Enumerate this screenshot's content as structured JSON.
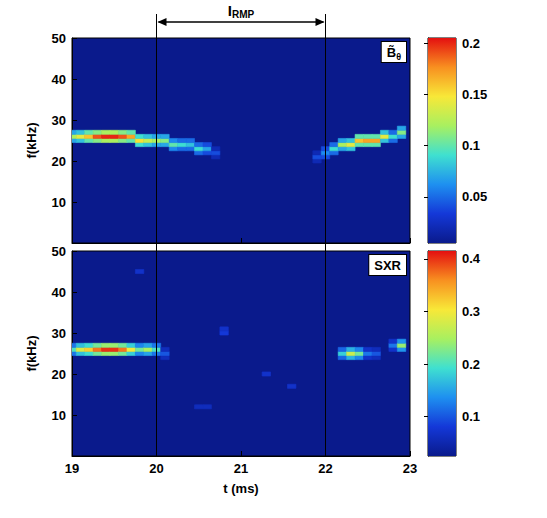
{
  "chart_data": [
    {
      "type": "heatmap",
      "title": {
        "text": "B̃",
        "subscript": "θ"
      },
      "ylabel": "f(kHz)",
      "xlim": [
        19,
        23
      ],
      "xticks": [
        19,
        20,
        21,
        22,
        23
      ],
      "ylim": [
        0,
        50
      ],
      "yticks": [
        10,
        20,
        30,
        40,
        50
      ],
      "tick_labels": "y",
      "grid": false,
      "annotations": [
        {
          "text": "I",
          "subscript": "RMP",
          "x": [
            20,
            22
          ]
        }
      ],
      "colorbar": {
        "range": [
          0.005,
          0.205
        ],
        "ticks": [
          0.05,
          0.1,
          0.15,
          0.2
        ]
      },
      "cells": [
        [
          19.0,
          25,
          0.07
        ],
        [
          19.0,
          26,
          0.12
        ],
        [
          19.0,
          27,
          0.07
        ],
        [
          19.1,
          25,
          0.08
        ],
        [
          19.1,
          26,
          0.14
        ],
        [
          19.1,
          27,
          0.08
        ],
        [
          19.2,
          25,
          0.1
        ],
        [
          19.2,
          26,
          0.16
        ],
        [
          19.2,
          27,
          0.1
        ],
        [
          19.3,
          25,
          0.11
        ],
        [
          19.3,
          26,
          0.19
        ],
        [
          19.3,
          27,
          0.11
        ],
        [
          19.4,
          25,
          0.12
        ],
        [
          19.4,
          26,
          0.2
        ],
        [
          19.4,
          27,
          0.12
        ],
        [
          19.5,
          25,
          0.12
        ],
        [
          19.5,
          26,
          0.2
        ],
        [
          19.5,
          27,
          0.12
        ],
        [
          19.6,
          25,
          0.11
        ],
        [
          19.6,
          26,
          0.19
        ],
        [
          19.6,
          27,
          0.11
        ],
        [
          19.7,
          25,
          0.1
        ],
        [
          19.7,
          26,
          0.17
        ],
        [
          19.7,
          27,
          0.1
        ],
        [
          19.8,
          24,
          0.09
        ],
        [
          19.8,
          25,
          0.15
        ],
        [
          19.8,
          26,
          0.09
        ],
        [
          19.9,
          24,
          0.08
        ],
        [
          19.9,
          25,
          0.13
        ],
        [
          19.9,
          26,
          0.08
        ],
        [
          20.0,
          24,
          0.07
        ],
        [
          20.0,
          25,
          0.12
        ],
        [
          20.0,
          26,
          0.07
        ],
        [
          20.1,
          24,
          0.07
        ],
        [
          20.1,
          25,
          0.11
        ],
        [
          20.1,
          26,
          0.07
        ],
        [
          20.2,
          23,
          0.06
        ],
        [
          20.2,
          24,
          0.1
        ],
        [
          20.2,
          25,
          0.06
        ],
        [
          20.3,
          23,
          0.05
        ],
        [
          20.3,
          24,
          0.09
        ],
        [
          20.3,
          25,
          0.05
        ],
        [
          20.4,
          23,
          0.05
        ],
        [
          20.4,
          24,
          0.08
        ],
        [
          20.4,
          25,
          0.05
        ],
        [
          20.5,
          22,
          0.05
        ],
        [
          20.5,
          23,
          0.09
        ],
        [
          20.5,
          24,
          0.05
        ],
        [
          20.6,
          22,
          0.04
        ],
        [
          20.6,
          23,
          0.07
        ],
        [
          20.6,
          24,
          0.04
        ],
        [
          20.7,
          21,
          0.02
        ],
        [
          20.7,
          22,
          0.04
        ],
        [
          20.7,
          23,
          0.02
        ],
        [
          21.9,
          20,
          0.02
        ],
        [
          21.9,
          21,
          0.04
        ],
        [
          21.9,
          22,
          0.02
        ],
        [
          22.0,
          21,
          0.04
        ],
        [
          22.0,
          22,
          0.06
        ],
        [
          22.0,
          23,
          0.04
        ],
        [
          22.1,
          22,
          0.05
        ],
        [
          22.1,
          23,
          0.09
        ],
        [
          22.1,
          24,
          0.05
        ],
        [
          22.2,
          23,
          0.07
        ],
        [
          22.2,
          24,
          0.12
        ],
        [
          22.2,
          25,
          0.07
        ],
        [
          22.3,
          23,
          0.08
        ],
        [
          22.3,
          24,
          0.14
        ],
        [
          22.3,
          25,
          0.08
        ],
        [
          22.4,
          24,
          0.1
        ],
        [
          22.4,
          25,
          0.16
        ],
        [
          22.4,
          26,
          0.1
        ],
        [
          22.5,
          24,
          0.1
        ],
        [
          22.5,
          25,
          0.17
        ],
        [
          22.5,
          26,
          0.1
        ],
        [
          22.6,
          24,
          0.1
        ],
        [
          22.6,
          25,
          0.17
        ],
        [
          22.6,
          26,
          0.1
        ],
        [
          22.7,
          25,
          0.08
        ],
        [
          22.7,
          26,
          0.14
        ],
        [
          22.7,
          27,
          0.08
        ],
        [
          22.8,
          25,
          0.05
        ],
        [
          22.8,
          26,
          0.09
        ],
        [
          22.8,
          27,
          0.05
        ],
        [
          22.9,
          26,
          0.07
        ],
        [
          22.9,
          27,
          0.11
        ],
        [
          22.9,
          28,
          0.07
        ]
      ]
    },
    {
      "type": "heatmap",
      "title": {
        "text": "SXR"
      },
      "xlabel": "t (ms)",
      "ylabel": "f(kHz)",
      "xlim": [
        19,
        23
      ],
      "xticks": [
        19,
        20,
        21,
        22,
        23
      ],
      "ylim": [
        0,
        50
      ],
      "yticks": [
        10,
        20,
        30,
        40,
        50
      ],
      "grid": false,
      "colorbar": {
        "range": [
          0.025,
          0.415
        ],
        "ticks": [
          0.1,
          0.2,
          0.3,
          0.4
        ]
      },
      "cells": [
        [
          19.0,
          25,
          0.12
        ],
        [
          19.0,
          26,
          0.2
        ],
        [
          19.0,
          27,
          0.12
        ],
        [
          19.1,
          25,
          0.17
        ],
        [
          19.1,
          26,
          0.28
        ],
        [
          19.1,
          27,
          0.17
        ],
        [
          19.2,
          25,
          0.19
        ],
        [
          19.2,
          26,
          0.32
        ],
        [
          19.2,
          27,
          0.19
        ],
        [
          19.3,
          25,
          0.22
        ],
        [
          19.3,
          26,
          0.37
        ],
        [
          19.3,
          27,
          0.22
        ],
        [
          19.4,
          25,
          0.24
        ],
        [
          19.4,
          26,
          0.4
        ],
        [
          19.4,
          27,
          0.24
        ],
        [
          19.5,
          25,
          0.24
        ],
        [
          19.5,
          26,
          0.4
        ],
        [
          19.5,
          27,
          0.24
        ],
        [
          19.6,
          25,
          0.22
        ],
        [
          19.6,
          26,
          0.37
        ],
        [
          19.6,
          27,
          0.22
        ],
        [
          19.7,
          25,
          0.18
        ],
        [
          19.7,
          26,
          0.3
        ],
        [
          19.7,
          27,
          0.18
        ],
        [
          19.8,
          25,
          0.13
        ],
        [
          19.8,
          26,
          0.22
        ],
        [
          19.8,
          27,
          0.13
        ],
        [
          19.9,
          25,
          0.15
        ],
        [
          19.9,
          26,
          0.25
        ],
        [
          19.9,
          27,
          0.15
        ],
        [
          20.0,
          25,
          0.12
        ],
        [
          20.0,
          26,
          0.2
        ],
        [
          20.0,
          27,
          0.12
        ],
        [
          20.1,
          24,
          0.06
        ],
        [
          20.1,
          25,
          0.1
        ],
        [
          20.1,
          26,
          0.06
        ],
        [
          22.2,
          24,
          0.11
        ],
        [
          22.2,
          25,
          0.18
        ],
        [
          22.2,
          26,
          0.11
        ],
        [
          22.3,
          24,
          0.16
        ],
        [
          22.3,
          25,
          0.27
        ],
        [
          22.3,
          26,
          0.16
        ],
        [
          22.4,
          24,
          0.13
        ],
        [
          22.4,
          25,
          0.22
        ],
        [
          22.4,
          26,
          0.13
        ],
        [
          22.5,
          24,
          0.07
        ],
        [
          22.5,
          25,
          0.12
        ],
        [
          22.5,
          26,
          0.07
        ],
        [
          22.6,
          24,
          0.06
        ],
        [
          22.6,
          25,
          0.1
        ],
        [
          22.6,
          26,
          0.06
        ],
        [
          22.8,
          26,
          0.07
        ],
        [
          22.8,
          27,
          0.12
        ],
        [
          22.8,
          28,
          0.07
        ],
        [
          22.9,
          26,
          0.14
        ],
        [
          22.9,
          27,
          0.24
        ],
        [
          22.9,
          28,
          0.14
        ],
        [
          20.8,
          30,
          0.08
        ],
        [
          20.8,
          31,
          0.07
        ],
        [
          21.3,
          20,
          0.07
        ],
        [
          19.8,
          45,
          0.07
        ],
        [
          21.6,
          17,
          0.07
        ],
        [
          20.5,
          12,
          0.06
        ],
        [
          20.6,
          12,
          0.06
        ]
      ]
    }
  ]
}
